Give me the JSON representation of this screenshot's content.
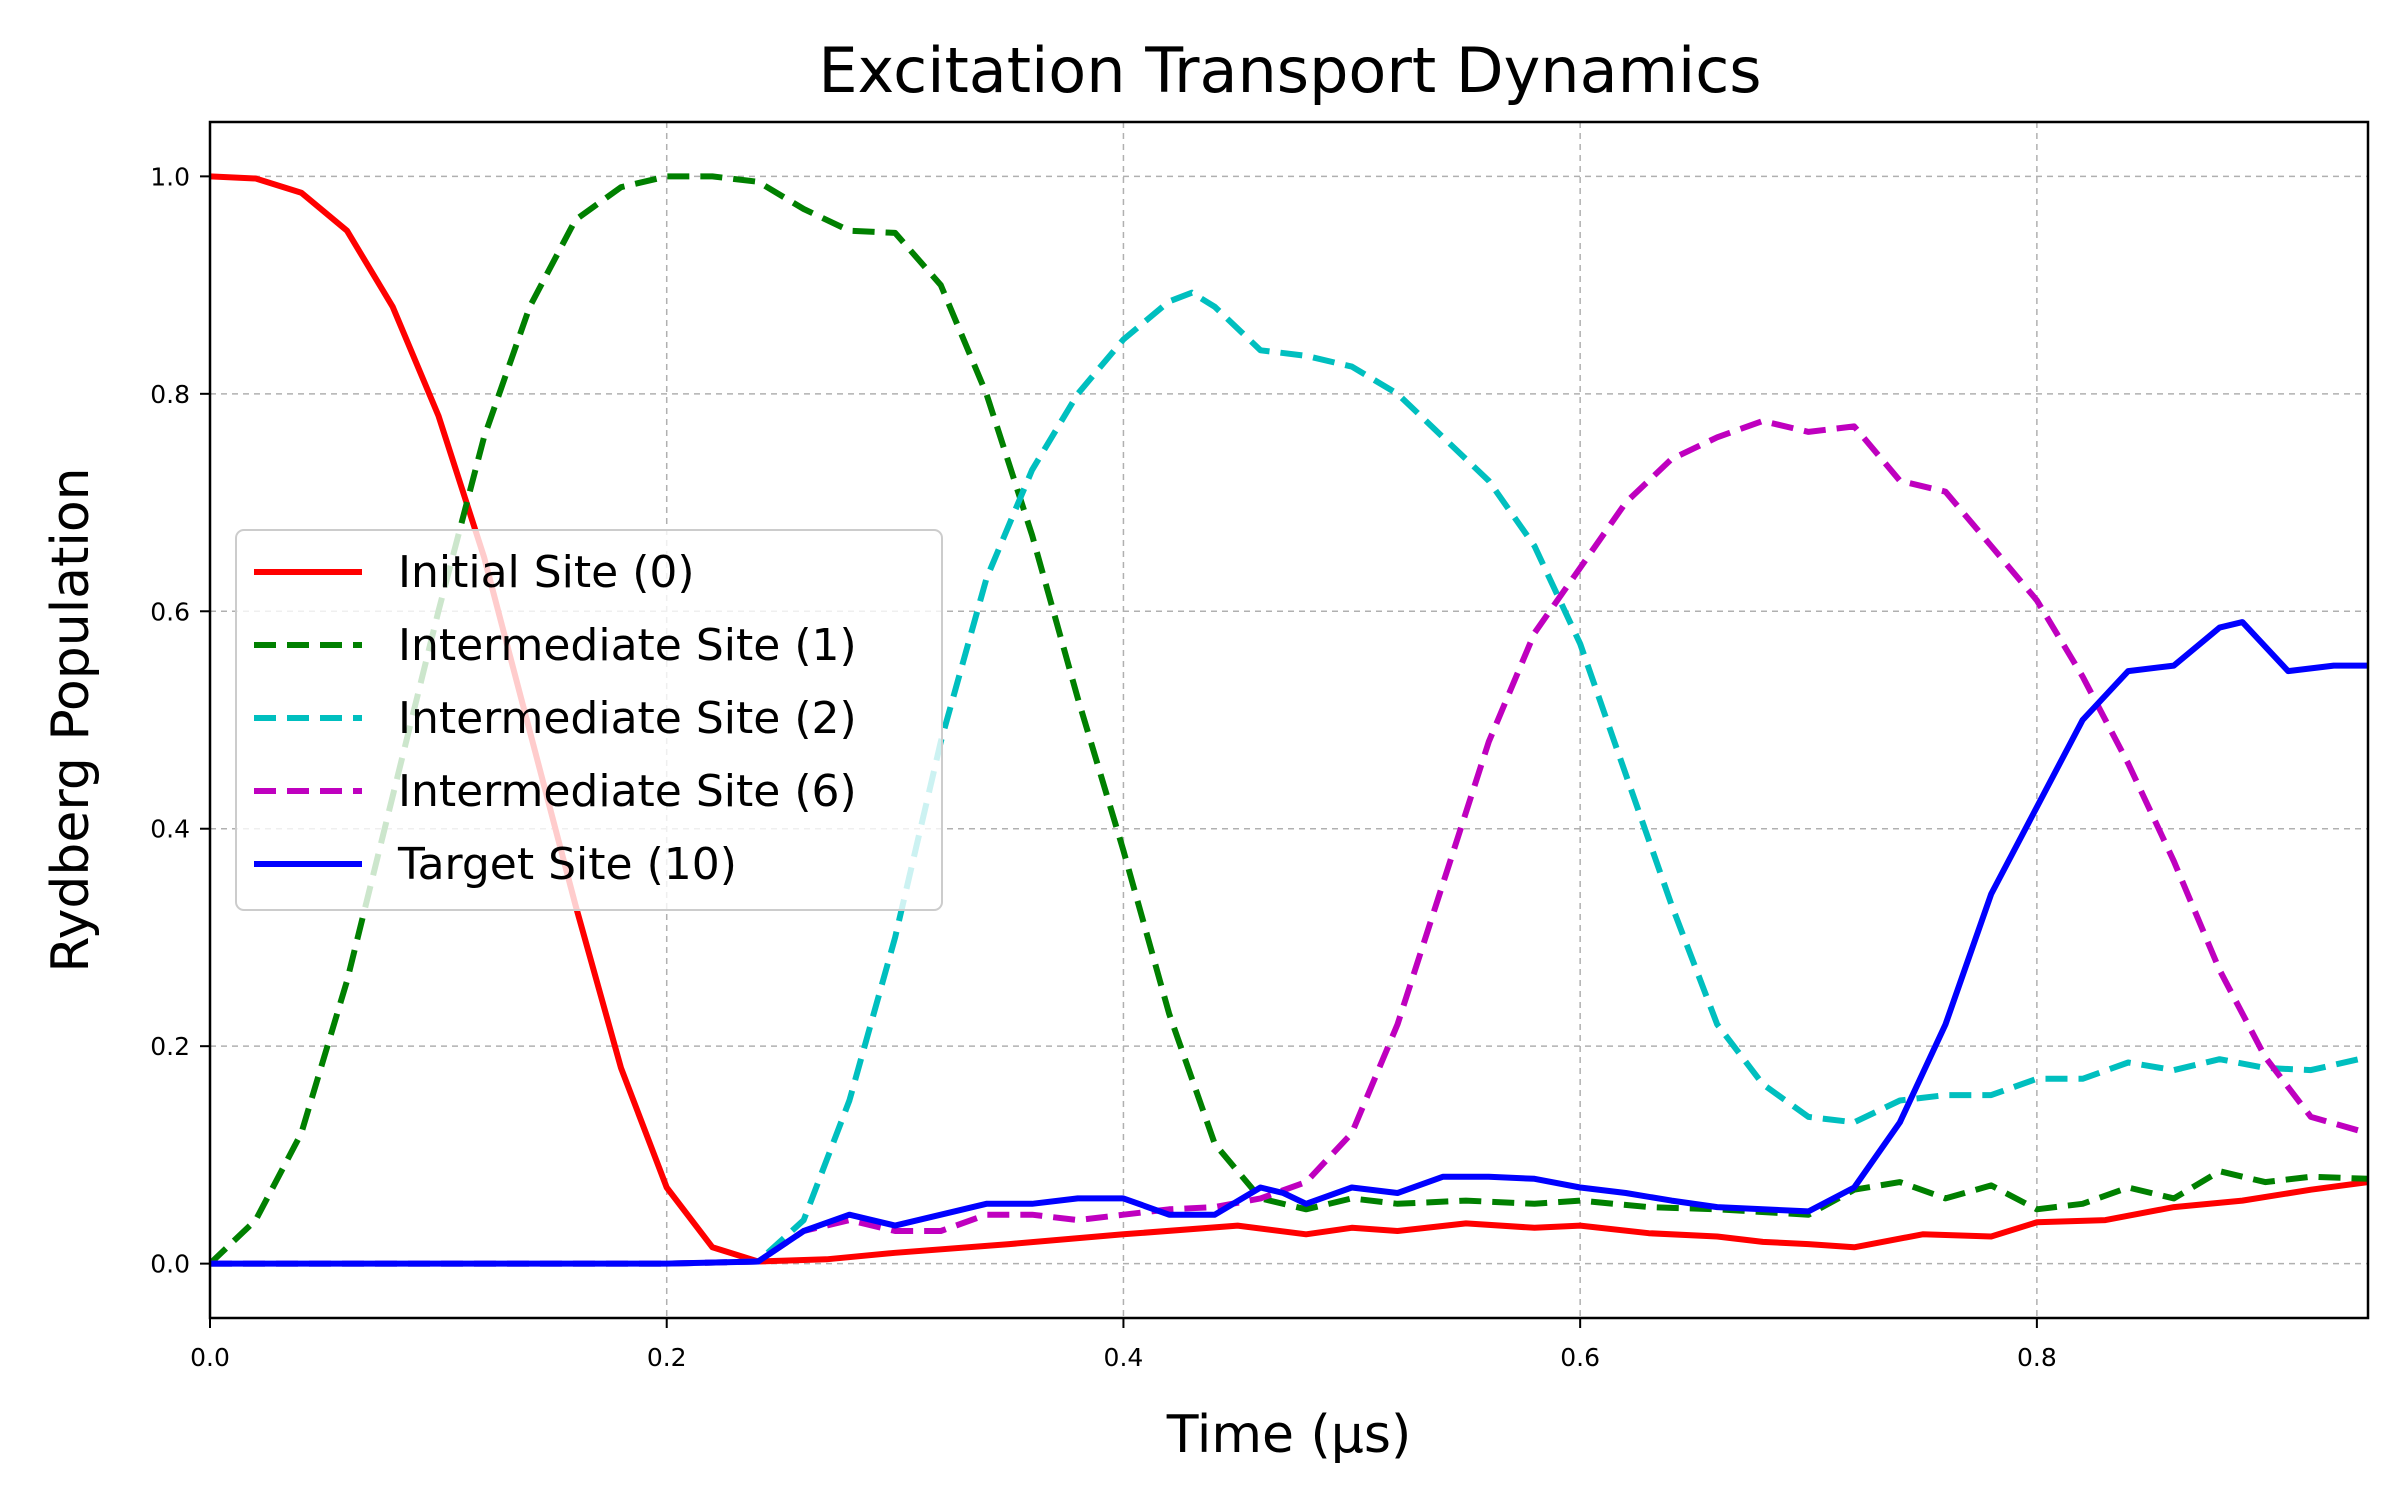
{
  "chart_data": {
    "type": "line",
    "title": "Excitation Transport Dynamics",
    "xlabel": "Time (µs)",
    "ylabel": "Rydberg Population",
    "xlim": [
      0.0,
      0.945
    ],
    "ylim": [
      -0.05,
      1.05
    ],
    "xticks": [
      0.0,
      0.2,
      0.4,
      0.6,
      0.8
    ],
    "xtick_labels": [
      "0.0",
      "0.2",
      "0.4",
      "0.6",
      "0.8"
    ],
    "yticks": [
      0.0,
      0.2,
      0.4,
      0.6,
      0.8,
      1.0
    ],
    "ytick_labels": [
      "0.0",
      "0.2",
      "0.4",
      "0.6",
      "0.8",
      "1.0"
    ],
    "grid": true,
    "legend_position": "center-left",
    "series": [
      {
        "name": "Initial Site (0)",
        "color": "#ff0000",
        "style": "solid",
        "x": [
          0.0,
          0.02,
          0.04,
          0.06,
          0.08,
          0.1,
          0.12,
          0.14,
          0.16,
          0.18,
          0.2,
          0.22,
          0.24,
          0.27,
          0.3,
          0.35,
          0.4,
          0.45,
          0.48,
          0.5,
          0.52,
          0.55,
          0.58,
          0.6,
          0.63,
          0.66,
          0.68,
          0.7,
          0.72,
          0.75,
          0.78,
          0.8,
          0.83,
          0.86,
          0.89,
          0.92,
          0.945
        ],
        "y": [
          1.0,
          0.998,
          0.985,
          0.95,
          0.88,
          0.78,
          0.65,
          0.49,
          0.33,
          0.18,
          0.07,
          0.015,
          0.002,
          0.004,
          0.01,
          0.018,
          0.027,
          0.035,
          0.027,
          0.033,
          0.03,
          0.037,
          0.033,
          0.035,
          0.028,
          0.025,
          0.02,
          0.018,
          0.015,
          0.027,
          0.025,
          0.038,
          0.04,
          0.052,
          0.058,
          0.068,
          0.075
        ]
      },
      {
        "name": "Intermediate Site (1)",
        "color": "#008000",
        "style": "dashed",
        "x": [
          0.0,
          0.02,
          0.04,
          0.06,
          0.08,
          0.1,
          0.12,
          0.14,
          0.16,
          0.18,
          0.2,
          0.22,
          0.24,
          0.26,
          0.28,
          0.3,
          0.32,
          0.34,
          0.36,
          0.38,
          0.4,
          0.42,
          0.44,
          0.46,
          0.48,
          0.5,
          0.52,
          0.55,
          0.58,
          0.6,
          0.63,
          0.66,
          0.7,
          0.72,
          0.74,
          0.76,
          0.78,
          0.8,
          0.82,
          0.84,
          0.86,
          0.88,
          0.9,
          0.92,
          0.945
        ],
        "y": [
          0.0,
          0.04,
          0.12,
          0.26,
          0.43,
          0.6,
          0.76,
          0.88,
          0.96,
          0.99,
          1.0,
          1.0,
          0.995,
          0.97,
          0.95,
          0.948,
          0.9,
          0.8,
          0.67,
          0.52,
          0.38,
          0.23,
          0.11,
          0.06,
          0.05,
          0.06,
          0.055,
          0.058,
          0.055,
          0.058,
          0.052,
          0.05,
          0.045,
          0.068,
          0.075,
          0.06,
          0.072,
          0.05,
          0.055,
          0.07,
          0.06,
          0.085,
          0.075,
          0.08,
          0.078
        ]
      },
      {
        "name": "Intermediate Site (2)",
        "color": "#00bfbf",
        "style": "dashed",
        "x": [
          0.0,
          0.1,
          0.2,
          0.24,
          0.26,
          0.28,
          0.3,
          0.32,
          0.34,
          0.36,
          0.38,
          0.4,
          0.42,
          0.43,
          0.44,
          0.46,
          0.48,
          0.5,
          0.52,
          0.54,
          0.56,
          0.58,
          0.6,
          0.62,
          0.64,
          0.66,
          0.68,
          0.7,
          0.72,
          0.74,
          0.76,
          0.78,
          0.8,
          0.82,
          0.84,
          0.86,
          0.88,
          0.9,
          0.92,
          0.945
        ],
        "y": [
          0.0,
          0.0,
          0.0,
          0.002,
          0.04,
          0.15,
          0.3,
          0.48,
          0.63,
          0.73,
          0.8,
          0.85,
          0.885,
          0.893,
          0.88,
          0.84,
          0.835,
          0.825,
          0.8,
          0.76,
          0.72,
          0.66,
          0.57,
          0.45,
          0.33,
          0.22,
          0.165,
          0.135,
          0.13,
          0.15,
          0.155,
          0.155,
          0.17,
          0.17,
          0.185,
          0.178,
          0.188,
          0.18,
          0.178,
          0.19
        ]
      },
      {
        "name": "Intermediate Site (6)",
        "color": "#bf00bf",
        "style": "dashed",
        "x": [
          0.0,
          0.1,
          0.2,
          0.24,
          0.26,
          0.28,
          0.3,
          0.32,
          0.34,
          0.36,
          0.38,
          0.4,
          0.42,
          0.44,
          0.46,
          0.48,
          0.5,
          0.52,
          0.54,
          0.56,
          0.58,
          0.6,
          0.62,
          0.64,
          0.66,
          0.68,
          0.7,
          0.72,
          0.74,
          0.76,
          0.78,
          0.8,
          0.82,
          0.84,
          0.86,
          0.88,
          0.9,
          0.92,
          0.945
        ],
        "y": [
          0.0,
          0.0,
          0.0,
          0.002,
          0.03,
          0.04,
          0.03,
          0.03,
          0.045,
          0.045,
          0.04,
          0.045,
          0.05,
          0.052,
          0.06,
          0.075,
          0.12,
          0.22,
          0.35,
          0.48,
          0.58,
          0.64,
          0.7,
          0.74,
          0.76,
          0.775,
          0.765,
          0.77,
          0.72,
          0.71,
          0.66,
          0.61,
          0.54,
          0.46,
          0.37,
          0.27,
          0.19,
          0.135,
          0.12
        ]
      },
      {
        "name": "Target Site (10)",
        "color": "#0000ff",
        "style": "solid",
        "x": [
          0.0,
          0.1,
          0.2,
          0.24,
          0.26,
          0.28,
          0.3,
          0.32,
          0.34,
          0.36,
          0.38,
          0.4,
          0.42,
          0.44,
          0.46,
          0.47,
          0.48,
          0.5,
          0.52,
          0.54,
          0.56,
          0.58,
          0.6,
          0.62,
          0.64,
          0.66,
          0.68,
          0.7,
          0.72,
          0.74,
          0.76,
          0.78,
          0.8,
          0.82,
          0.84,
          0.86,
          0.88,
          0.89,
          0.91,
          0.93,
          0.945
        ],
        "y": [
          0.0,
          0.0,
          0.0,
          0.002,
          0.03,
          0.045,
          0.035,
          0.045,
          0.055,
          0.055,
          0.06,
          0.06,
          0.045,
          0.045,
          0.07,
          0.065,
          0.055,
          0.07,
          0.065,
          0.08,
          0.08,
          0.078,
          0.07,
          0.065,
          0.058,
          0.052,
          0.05,
          0.048,
          0.07,
          0.13,
          0.22,
          0.34,
          0.42,
          0.5,
          0.545,
          0.55,
          0.585,
          0.59,
          0.545,
          0.55,
          0.55
        ]
      }
    ]
  }
}
